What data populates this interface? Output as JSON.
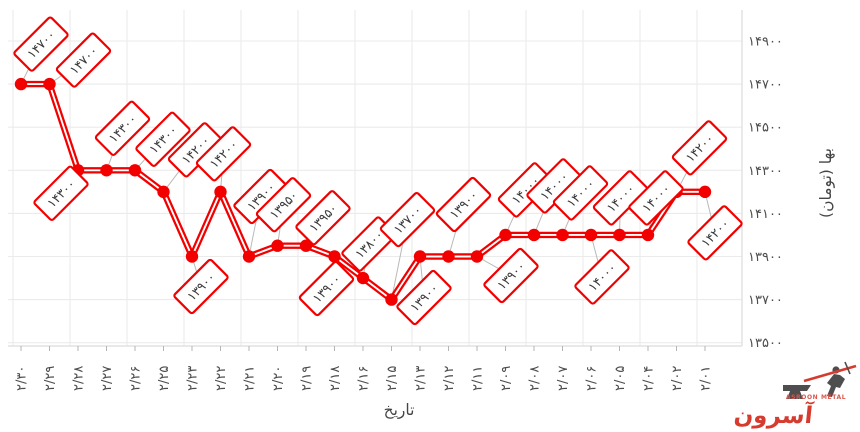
{
  "chart_data": {
    "type": "line",
    "title": "",
    "xlabel": "تاریخ",
    "ylabel": "بها (تومان)",
    "categories": [
      "۲/۳۰",
      "۲/۲۹",
      "۲/۲۸",
      "۲/۲۷",
      "۲/۲۶",
      "۲/۲۵",
      "۲/۲۳",
      "۲/۲۲",
      "۲/۲۱",
      "۲/۲۰",
      "۲/۱۹",
      "۲/۱۸",
      "۲/۱۶",
      "۲/۱۵",
      "۲/۱۳",
      "۲/۱۲",
      "۲/۱۱",
      "۲/۰۹",
      "۲/۰۸",
      "۲/۰۷",
      "۲/۰۶",
      "۲/۰۵",
      "۲/۰۴",
      "۲/۰۲",
      "۲/۰۱"
    ],
    "values": [
      14700,
      14700,
      14300,
      14300,
      14300,
      14200,
      13900,
      14200,
      13900,
      13950,
      13950,
      13900,
      13800,
      13700,
      13900,
      13900,
      13900,
      14000,
      14000,
      14000,
      14000,
      14000,
      14000,
      14200,
      14200
    ],
    "point_labels": [
      "۱۴۷۰۰",
      "۱۴۷۰۰",
      "۱۴۳۰۰",
      "۱۴۳۰۰",
      "۱۴۳۰۰",
      "۱۴۲۰۰",
      "۱۳۹۰۰",
      "۱۴۲۰۰",
      "۱۳۹۰۰",
      "۱۳۹۵۰",
      "۱۳۹۵۰",
      "۱۳۹۰۰",
      "۱۳۸۰۰",
      "۱۳۷۰۰",
      "۱۳۹۰۰",
      "۱۳۹۰۰",
      "۱۳۹۰۰",
      "۱۴۰۰۰",
      "۱۴۰۰۰",
      "۱۴۰۰۰",
      "۱۴۰۰۰",
      "۱۴۰۰۰",
      "۱۴۰۰۰",
      "۱۴۲۰۰",
      "۱۴۲۰۰"
    ],
    "y_ticks": {
      "values": [
        14900,
        14700,
        14500,
        14300,
        14100,
        13900,
        13700,
        13500
      ],
      "labels": [
        "۱۴۹۰۰",
        "۱۴۷۰۰",
        "۱۴۵۰۰",
        "۱۴۳۰۰",
        "۱۴۱۰۰",
        "۱۳۹۰۰",
        "۱۳۷۰۰",
        "۱۳۵۰۰"
      ]
    },
    "ylim": [
      13500,
      14900
    ],
    "grid": true,
    "legend": "none",
    "series_color": "#f20000",
    "label_box_fill": "#ffffff",
    "label_box_border": "#f20000",
    "connector_color": "#b9b9b9",
    "grid_color": "#ebebeb"
  },
  "watermark": {
    "brand_fa": "آسرون",
    "brand_en": "ASROON METAL",
    "color": "#d63b2f"
  }
}
